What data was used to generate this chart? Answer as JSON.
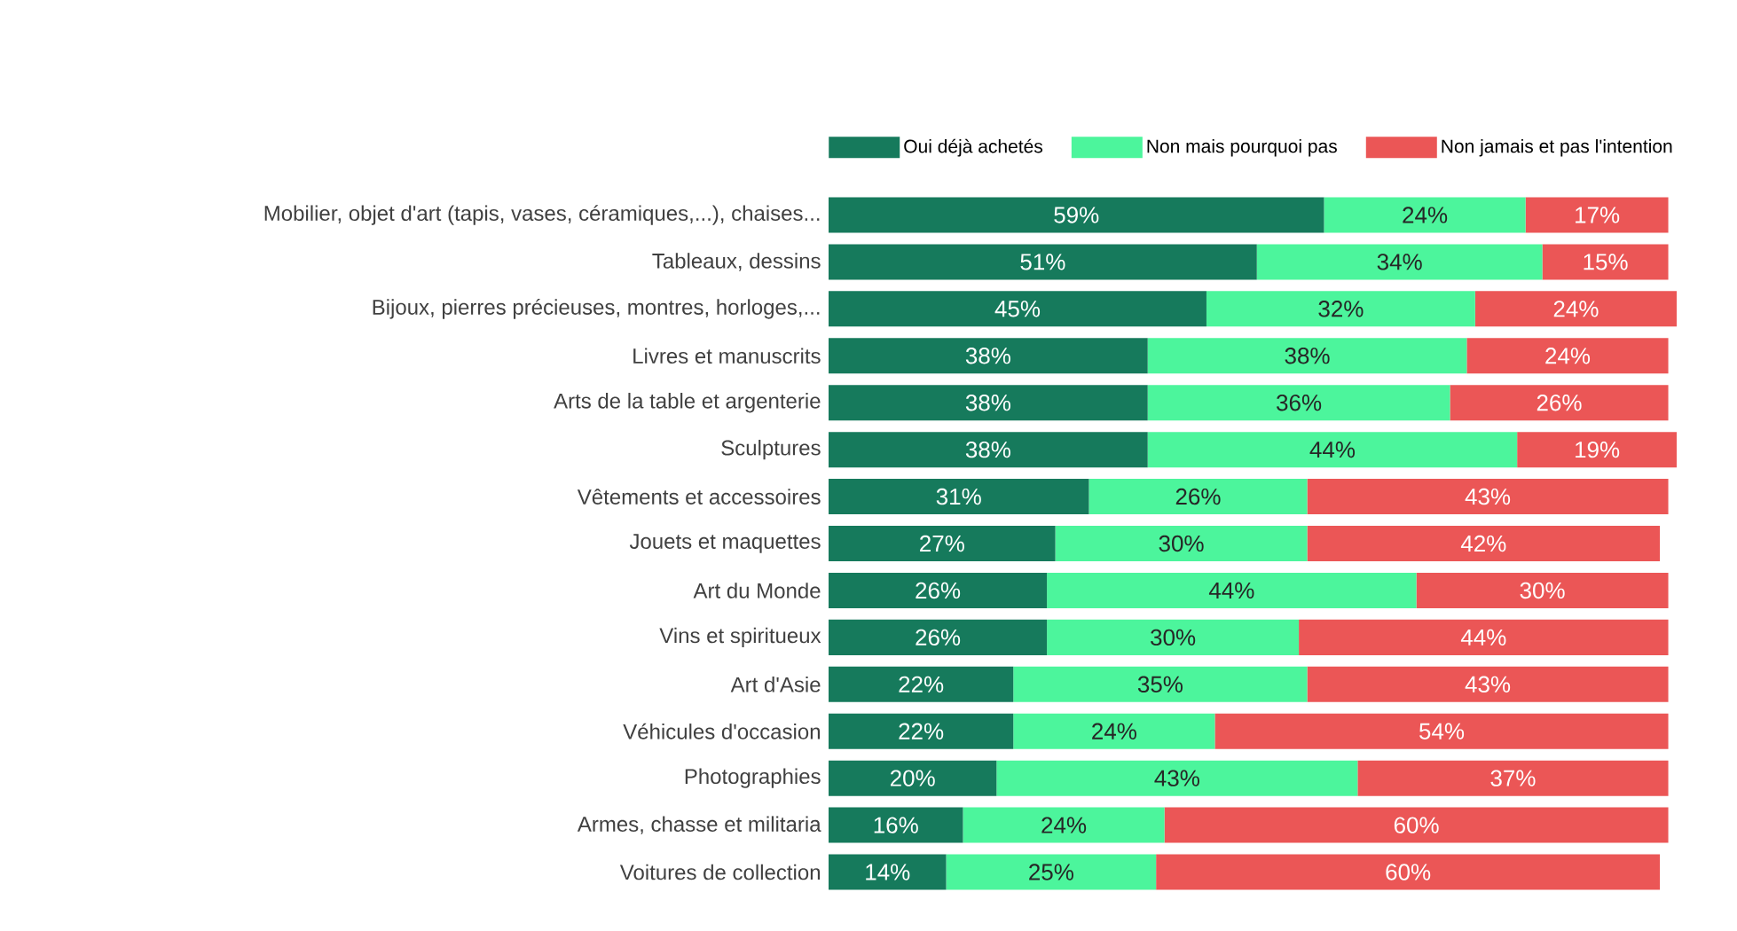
{
  "chart_data": {
    "type": "bar",
    "orientation": "horizontal",
    "stacked": true,
    "legend": "top",
    "categories": [
      "Mobilier, objet d'art (tapis, vases, céramiques,...), chaises...",
      "Tableaux, dessins",
      "Bijoux, pierres précieuses, montres, horloges,...",
      "Livres et manuscrits",
      "Arts de la table et argenterie",
      "Sculptures",
      "Vêtements et accessoires",
      "Jouets et maquettes",
      "Art du Monde",
      "Vins et spiritueux",
      "Art d'Asie",
      "Véhicules d'occasion",
      "Photographies",
      "Armes, chasse et militaria",
      "Voitures de collection"
    ],
    "series": [
      {
        "name": "Oui déjà achetés",
        "color": "#167a5c",
        "values": [
          59,
          51,
          45,
          38,
          38,
          38,
          31,
          27,
          26,
          26,
          22,
          22,
          20,
          16,
          14
        ],
        "value_labels": [
          "59%",
          "51%",
          "45%",
          "38%",
          "38%",
          "38%",
          "31%",
          "27%",
          "26%",
          "26%",
          "22%",
          "22%",
          "20%",
          "16%",
          "14%"
        ]
      },
      {
        "name": "Non mais pourquoi pas",
        "color": "#4cf59c",
        "values": [
          24,
          34,
          32,
          38,
          36,
          44,
          26,
          30,
          44,
          30,
          35,
          24,
          43,
          24,
          25
        ],
        "value_labels": [
          "24%",
          "34%",
          "32%",
          "38%",
          "36%",
          "44%",
          "26%",
          "30%",
          "44%",
          "30%",
          "35%",
          "24%",
          "43%",
          "24%",
          "25%"
        ]
      },
      {
        "name": "Non jamais et pas l'intention",
        "color": "#eb5656",
        "values": [
          17,
          15,
          24,
          24,
          26,
          19,
          43,
          42,
          30,
          44,
          43,
          54,
          37,
          60,
          60
        ],
        "value_labels": [
          "17%",
          "15%",
          "24%",
          "24%",
          "26%",
          "19%",
          "43%",
          "42%",
          "30%",
          "44%",
          "43%",
          "54%",
          "37%",
          "60%",
          "60%"
        ]
      }
    ]
  }
}
